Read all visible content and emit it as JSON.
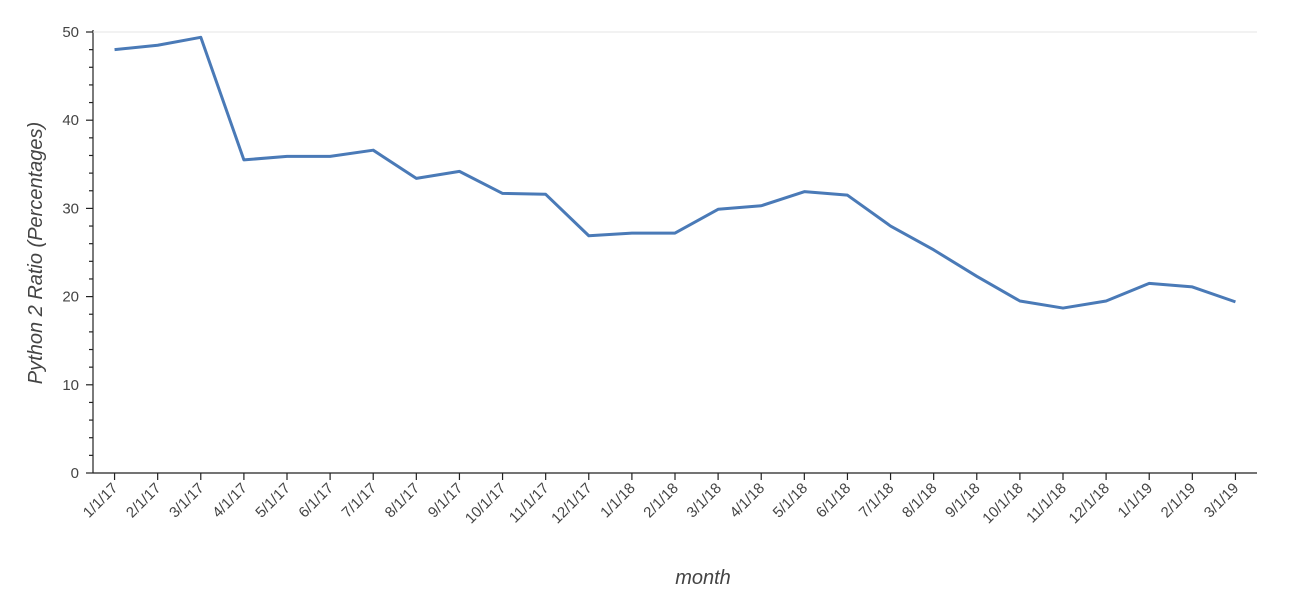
{
  "chart_data": {
    "type": "line",
    "x_label": "month",
    "y_label": "Python 2 Ratio (Percentages)",
    "categories": [
      "1/1/17",
      "2/1/17",
      "3/1/17",
      "4/1/17",
      "5/1/17",
      "6/1/17",
      "7/1/17",
      "8/1/17",
      "9/1/17",
      "10/1/17",
      "11/1/17",
      "12/1/17",
      "1/1/18",
      "2/1/18",
      "3/1/18",
      "4/1/18",
      "5/1/18",
      "6/1/18",
      "7/1/18",
      "8/1/18",
      "9/1/18",
      "10/1/18",
      "11/1/18",
      "12/1/18",
      "1/1/19",
      "2/1/19",
      "3/1/19"
    ],
    "values": [
      48.0,
      48.5,
      49.4,
      35.5,
      35.9,
      35.9,
      36.6,
      33.4,
      34.2,
      31.7,
      31.6,
      26.9,
      27.2,
      27.2,
      29.9,
      30.3,
      31.9,
      31.5,
      28.0,
      25.3,
      22.3,
      19.5,
      18.7,
      19.5,
      21.5,
      21.1,
      19.4
    ],
    "color": "#4a7ab7",
    "ylim": [
      0,
      50
    ],
    "yticks": [
      0,
      10,
      20,
      30,
      40,
      50
    ]
  }
}
